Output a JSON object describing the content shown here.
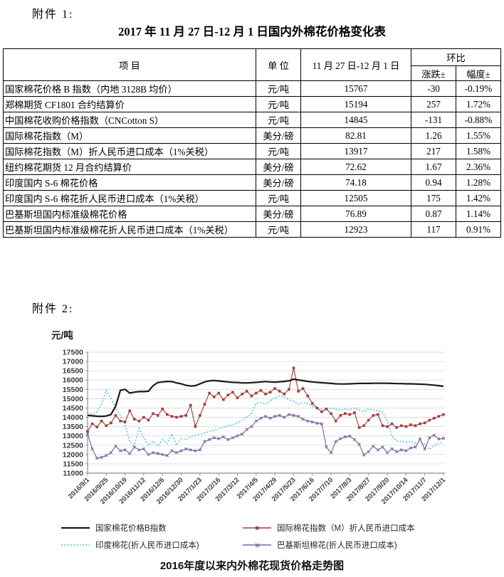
{
  "page": {
    "attachment1_label": "附件 1:",
    "attachment2_label": "附件 2:",
    "table_title": "2017 年 11 月 27 日-12 月 1 日国内外棉花价格变化表"
  },
  "table": {
    "headers": {
      "item": "项  目",
      "unit": "单 位",
      "period": "11 月 27 日-12 月 1 日",
      "huanbi": "环比",
      "change": "涨跌±",
      "range": "幅度±"
    },
    "rows": [
      {
        "item": "国家棉花价格 B 指数（内地 3128B 均价）",
        "unit": "元/吨",
        "value": "15767",
        "change": "-30",
        "range": "-0.19%"
      },
      {
        "item": "郑棉期货 CF1801 合约结算价",
        "unit": "元/吨",
        "value": "15194",
        "change": "257",
        "range": "1.72%"
      },
      {
        "item": "中国棉花收购价格指数（CNCotton S）",
        "unit": "元/吨",
        "value": "14845",
        "change": "-131",
        "range": "-0.88%"
      },
      {
        "item": "国际棉花指数（M）",
        "unit": "美分/磅",
        "value": "82.81",
        "change": "1.26",
        "range": "1.55%"
      },
      {
        "item": "国际棉花指数（M）折人民币进口成本（1%关税）",
        "unit": "元/吨",
        "value": "13917",
        "change": "217",
        "range": "1.58%"
      },
      {
        "item": "纽约棉花期货 12 月合约结算价",
        "unit": "美分/磅",
        "value": "72.62",
        "change": "1.67",
        "range": "2.36%"
      },
      {
        "item": "印度国内 S-6 棉花价格",
        "unit": "美分/磅",
        "value": "74.18",
        "change": "0.94",
        "range": "1.28%"
      },
      {
        "item": "印度国内 S-6 棉花折人民币进口成本（1%关税）",
        "unit": "元/吨",
        "value": "12505",
        "change": "175",
        "range": "1.42%"
      },
      {
        "item": "巴基斯坦国内标准级棉花价格",
        "unit": "美分/磅",
        "value": "76.89",
        "change": "0.87",
        "range": "1.14%"
      },
      {
        "item": "巴基斯坦国内标准级棉花折人民币进口成本（1%关税）",
        "unit": "元/吨",
        "value": "12923",
        "change": "117",
        "range": "0.91%"
      }
    ]
  },
  "chart_data": {
    "type": "line",
    "title": "2016年度以来内外棉花现货价格走势图",
    "unit_label": "元/吨",
    "ylabel": "元/吨",
    "ylim": [
      11000,
      17500
    ],
    "ytick_step": 500,
    "grid": true,
    "legend_position": "bottom",
    "sampling": "values evenly spaced from 2016/9/1 to 2017/12/1",
    "x_tick_labels": [
      "2016/9/1",
      "2016/9/25",
      "2016/10/19",
      "2016/11/12",
      "2016/12/6",
      "2016/12/30",
      "2017/1/23",
      "2017/2/16",
      "2017/3/12",
      "2017/4/5",
      "2017/4/29",
      "2017/5/23",
      "2017/6/16",
      "2017/7/10",
      "2017/8/3",
      "2017/8/27",
      "2017/9/20",
      "2017/10/14",
      "2017/11/7",
      "2017/12/1"
    ],
    "series": [
      {
        "name": "国家棉花价格B指数",
        "color": "#1a1a1a",
        "style": "solid",
        "values": [
          14100,
          14080,
          14060,
          14050,
          14070,
          14150,
          14600,
          15450,
          15500,
          15300,
          15350,
          15380,
          15380,
          15400,
          15700,
          15870,
          15900,
          15930,
          15920,
          15850,
          15800,
          15720,
          15680,
          15700,
          15800,
          15900,
          15960,
          15980,
          15950,
          15930,
          15900,
          15880,
          15870,
          15850,
          15850,
          15860,
          15880,
          15900,
          15920,
          15900,
          15890,
          15910,
          15930,
          15960,
          16050,
          16010,
          15970,
          15930,
          15900,
          15880,
          15860,
          15840,
          15820,
          15800,
          15790,
          15790,
          15800,
          15810,
          15820,
          15820,
          15820,
          15830,
          15830,
          15830,
          15830,
          15820,
          15810,
          15810,
          15800,
          15800,
          15790,
          15780,
          15770,
          15750,
          15730,
          15700,
          15670
        ]
      },
      {
        "name": "国际棉花指数（M）折人民币进口成本",
        "color": "#A43E3B",
        "line_color": "#8f8f8f",
        "style": "solid-marker",
        "marker": "square",
        "values": [
          13250,
          13650,
          13480,
          13800,
          13550,
          13700,
          14100,
          13800,
          13750,
          14350,
          13900,
          13800,
          14000,
          13850,
          14200,
          14100,
          14450,
          14150,
          14050,
          14000,
          14050,
          14100,
          14650,
          13500,
          14100,
          14700,
          15300,
          15100,
          15300,
          14950,
          15200,
          15350,
          15050,
          15250,
          15400,
          15150,
          15300,
          15450,
          15250,
          15350,
          15550,
          15400,
          15250,
          15500,
          16650,
          15400,
          15550,
          15150,
          14750,
          14500,
          14300,
          14450,
          14200,
          13800,
          14100,
          14200,
          14150,
          14250,
          13450,
          13550,
          13850,
          14100,
          14150,
          13550,
          13500,
          13650,
          13450,
          13550,
          13500,
          13600,
          13550,
          13650,
          13700,
          13850,
          13950,
          14050,
          14150
        ]
      },
      {
        "name": "印度棉花(折人民币进口成本)",
        "color": "#58C3EA",
        "style": "dotted",
        "values": [
          14200,
          14150,
          14300,
          14700,
          15450,
          15000,
          14500,
          14100,
          13600,
          12700,
          12500,
          13400,
          12900,
          12500,
          12700,
          12450,
          12800,
          12600,
          13100,
          12500,
          12850,
          12800,
          12950,
          13050,
          13100,
          13150,
          13250,
          13300,
          13400,
          13450,
          13550,
          13600,
          13700,
          13850,
          14000,
          14200,
          14750,
          14800,
          14700,
          14900,
          15050,
          15150,
          15100,
          14950,
          14850,
          14700,
          14800,
          14750,
          14600,
          14500,
          14450,
          14400,
          14500,
          14450,
          14400,
          14450,
          14400,
          14500,
          14400,
          14300,
          14450,
          14400,
          14350,
          14300,
          13800,
          13000,
          12720,
          12700,
          12650,
          12700,
          12600,
          12650,
          12550,
          12270,
          12500,
          12600,
          12650
        ]
      },
      {
        "name": "巴基斯坦棉花(折人民币进口成本)",
        "color": "#8064A2",
        "line_color": "#9c8478",
        "style": "solid-marker",
        "marker": "x",
        "values": [
          13100,
          12300,
          11800,
          11850,
          11950,
          12100,
          12450,
          12200,
          12250,
          12050,
          12400,
          12250,
          12300,
          12000,
          12100,
          12050,
          12000,
          11950,
          12200,
          12100,
          12200,
          12300,
          12250,
          12200,
          12250,
          12700,
          12800,
          12900,
          12850,
          12950,
          12800,
          12900,
          13000,
          13100,
          13350,
          13500,
          13800,
          13950,
          14050,
          13950,
          14050,
          14100,
          14000,
          14150,
          14100,
          14050,
          13900,
          13800,
          13750,
          13680,
          13650,
          12400,
          12100,
          12700,
          12850,
          12950,
          12990,
          12800,
          12550,
          11980,
          12150,
          12450,
          12250,
          12400,
          12100,
          12300,
          12150,
          12250,
          12200,
          12350,
          12400,
          12840,
          12300,
          12900,
          13030,
          12840,
          12870
        ]
      }
    ]
  }
}
